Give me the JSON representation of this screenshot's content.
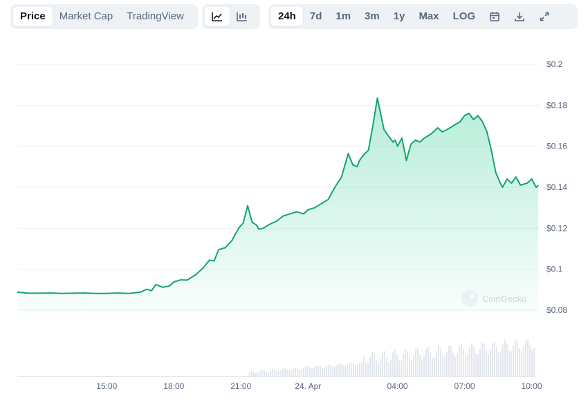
{
  "toolbar": {
    "view_tabs": [
      {
        "label": "Price",
        "active": true
      },
      {
        "label": "Market Cap",
        "active": false
      },
      {
        "label": "TradingView",
        "active": false
      }
    ],
    "chart_type_icons": [
      "line-chart-icon",
      "candlestick-icon"
    ],
    "ranges": [
      {
        "label": "24h",
        "active": true
      },
      {
        "label": "7d",
        "active": false
      },
      {
        "label": "1m",
        "active": false
      },
      {
        "label": "3m",
        "active": false
      },
      {
        "label": "1y",
        "active": false
      },
      {
        "label": "Max",
        "active": false
      },
      {
        "label": "LOG",
        "active": false
      }
    ],
    "tool_icons": [
      "calendar-icon",
      "download-icon",
      "fullscreen-icon"
    ]
  },
  "watermark": "CoinGecko",
  "colors": {
    "line": "#16c784",
    "line_dark": "#13a36e",
    "fill": "#16c784",
    "volume": "#cfd6e4"
  },
  "chart_data": {
    "type": "line",
    "title": "",
    "xlabel": "",
    "ylabel": "",
    "ylim": [
      0.08,
      0.2
    ],
    "y_ticks": [
      0.08,
      0.1,
      0.12,
      0.14,
      0.16,
      0.18,
      0.2
    ],
    "y_tick_labels": [
      "$0.08",
      "$0.1",
      "$0.12",
      "$0.14",
      "$0.16",
      "$0.18",
      "$0.2"
    ],
    "x_range": [
      "11:00",
      "10:10"
    ],
    "x_ticks": [
      "15:00",
      "18:00",
      "21:00",
      "24. Apr",
      "04:00",
      "07:00",
      "10:00"
    ],
    "x_tick_hours": [
      15,
      18,
      21,
      24,
      28,
      31,
      34
    ],
    "grid": true,
    "legend": "none",
    "series": [
      {
        "x_hours": [
          11.0,
          11.5,
          12.0,
          12.5,
          13.0,
          13.5,
          14.0,
          14.5,
          15.0,
          15.5,
          16.0,
          16.5,
          16.8,
          17.0,
          17.2,
          17.5,
          17.8,
          18.0,
          18.3,
          18.6,
          19.0,
          19.3,
          19.6,
          19.8,
          20.0,
          20.3,
          20.6,
          20.9,
          21.1,
          21.3,
          21.5,
          21.7,
          21.8,
          22.0,
          22.3,
          22.6,
          22.9,
          23.2,
          23.5,
          23.8,
          24.0,
          24.3,
          24.6,
          24.9,
          25.2,
          25.5,
          25.8,
          26.0,
          26.2,
          26.3,
          26.5,
          26.7,
          26.9,
          27.1,
          27.4,
          27.6,
          27.8,
          27.9,
          28.0,
          28.2,
          28.4,
          28.6,
          28.8,
          29.0,
          29.2,
          29.5,
          29.8,
          30.0,
          30.2,
          30.5,
          30.8,
          31.0,
          31.2,
          31.4,
          31.6,
          31.8,
          32.0,
          32.2,
          32.4,
          32.6,
          32.7,
          32.9,
          33.1,
          33.3,
          33.5,
          33.8,
          34.0,
          34.2,
          34.3
        ],
        "values": [
          0.0888,
          0.0883,
          0.0883,
          0.0884,
          0.0882,
          0.0883,
          0.0884,
          0.0882,
          0.0882,
          0.0884,
          0.0882,
          0.0888,
          0.0902,
          0.0895,
          0.0925,
          0.0912,
          0.0918,
          0.0938,
          0.0948,
          0.0947,
          0.0975,
          0.1005,
          0.1045,
          0.104,
          0.1095,
          0.1105,
          0.114,
          0.12,
          0.1225,
          0.131,
          0.123,
          0.1215,
          0.1195,
          0.12,
          0.122,
          0.1235,
          0.126,
          0.127,
          0.128,
          0.127,
          0.129,
          0.13,
          0.132,
          0.134,
          0.14,
          0.145,
          0.1565,
          0.151,
          0.15,
          0.153,
          0.156,
          0.158,
          0.17,
          0.1835,
          0.168,
          0.165,
          0.162,
          0.163,
          0.16,
          0.164,
          0.153,
          0.161,
          0.163,
          0.162,
          0.164,
          0.166,
          0.169,
          0.167,
          0.168,
          0.17,
          0.172,
          0.175,
          0.176,
          0.173,
          0.175,
          0.172,
          0.167,
          0.158,
          0.147,
          0.142,
          0.14,
          0.144,
          0.142,
          0.145,
          0.141,
          0.142,
          0.144,
          0.14,
          0.141
        ]
      }
    ]
  }
}
